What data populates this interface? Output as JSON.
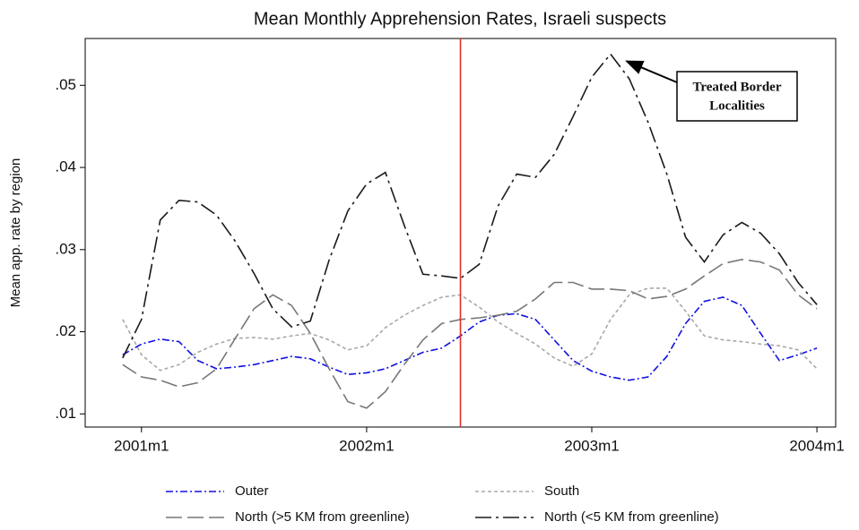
{
  "chart_data": {
    "type": "line",
    "title": "Mean Monthly Apprehension Rates, Israeli suspects",
    "y_label": "Mean app. rate by region",
    "x": [
      "2000m12",
      "2001m1",
      "2001m2",
      "2001m3",
      "2001m4",
      "2001m5",
      "2001m6",
      "2001m7",
      "2001m8",
      "2001m9",
      "2001m10",
      "2001m11",
      "2001m12",
      "2002m1",
      "2002m2",
      "2002m3",
      "2002m4",
      "2002m5",
      "2002m6",
      "2002m7",
      "2002m8",
      "2002m9",
      "2002m10",
      "2002m11",
      "2002m12",
      "2003m1",
      "2003m2",
      "2003m3",
      "2003m4",
      "2003m5",
      "2003m6",
      "2003m7",
      "2003m8",
      "2003m9",
      "2003m10",
      "2003m11",
      "2003m12",
      "2004m1"
    ],
    "xlim": [
      "2000m10",
      "2004m2"
    ],
    "xticks": [
      "2001m1",
      "2002m1",
      "2003m1",
      "2004m1"
    ],
    "ylim": [
      0.0084,
      0.0557
    ],
    "yticks": [
      {
        "value": 0.01,
        "label": ".01"
      },
      {
        "value": 0.02,
        "label": ".02"
      },
      {
        "value": 0.03,
        "label": ".03"
      },
      {
        "value": 0.04,
        "label": ".04"
      },
      {
        "value": 0.05,
        "label": ".05"
      }
    ],
    "xline": "2002m6",
    "xline_color": "#e0302a",
    "annotation": [
      "Treated Border",
      "Localities"
    ],
    "series": [
      {
        "name": "Outer",
        "color": "#1010e0",
        "dash": "8 3 2 3",
        "values": [
          0.0172,
          0.0185,
          0.0191,
          0.0188,
          0.0165,
          0.0155,
          0.0157,
          0.016,
          0.0165,
          0.017,
          0.0167,
          0.0157,
          0.0148,
          0.015,
          0.0155,
          0.0165,
          0.0175,
          0.018,
          0.0195,
          0.0212,
          0.022,
          0.0222,
          0.0215,
          0.019,
          0.0165,
          0.0152,
          0.0145,
          0.0141,
          0.0145,
          0.017,
          0.021,
          0.0237,
          0.0242,
          0.0232,
          0.0198,
          0.0165,
          0.0172,
          0.018
        ]
      },
      {
        "name": "South",
        "color": "#a8a8a8",
        "dash": "4 3",
        "values": [
          0.0215,
          0.0172,
          0.0153,
          0.016,
          0.0175,
          0.0185,
          0.0192,
          0.0193,
          0.0191,
          0.0195,
          0.0198,
          0.019,
          0.0178,
          0.0183,
          0.0205,
          0.022,
          0.0232,
          0.0242,
          0.0245,
          0.023,
          0.0212,
          0.0198,
          0.0185,
          0.0168,
          0.0158,
          0.0173,
          0.0215,
          0.0245,
          0.0253,
          0.0253,
          0.0225,
          0.0195,
          0.019,
          0.0188,
          0.0185,
          0.0183,
          0.0178,
          0.0155
        ]
      },
      {
        "name": "North (>5 KM from greenline)",
        "color": "#777777",
        "dash": "18 6",
        "values": [
          0.016,
          0.0145,
          0.0141,
          0.0133,
          0.0138,
          0.0155,
          0.0192,
          0.0228,
          0.0245,
          0.0232,
          0.0198,
          0.0155,
          0.0115,
          0.0107,
          0.0127,
          0.016,
          0.019,
          0.021,
          0.0215,
          0.0217,
          0.022,
          0.0225,
          0.024,
          0.026,
          0.026,
          0.0252,
          0.0252,
          0.025,
          0.024,
          0.0243,
          0.0252,
          0.0268,
          0.0283,
          0.0288,
          0.0285,
          0.0275,
          0.0245,
          0.0228
        ]
      },
      {
        "name": "North (<5 KM from greenline)",
        "color": "#1a1a1a",
        "dash": "18 5 3 5",
        "values": [
          0.0168,
          0.0215,
          0.0336,
          0.036,
          0.0358,
          0.0342,
          0.031,
          0.0271,
          0.0228,
          0.0206,
          0.0213,
          0.0287,
          0.0347,
          0.038,
          0.0394,
          0.033,
          0.027,
          0.0268,
          0.0265,
          0.0282,
          0.0353,
          0.0392,
          0.0388,
          0.0416,
          0.0462,
          0.051,
          0.0538,
          0.0508,
          0.0455,
          0.0392,
          0.0315,
          0.0285,
          0.0318,
          0.0333,
          0.032,
          0.0295,
          0.026,
          0.0233
        ]
      }
    ]
  }
}
